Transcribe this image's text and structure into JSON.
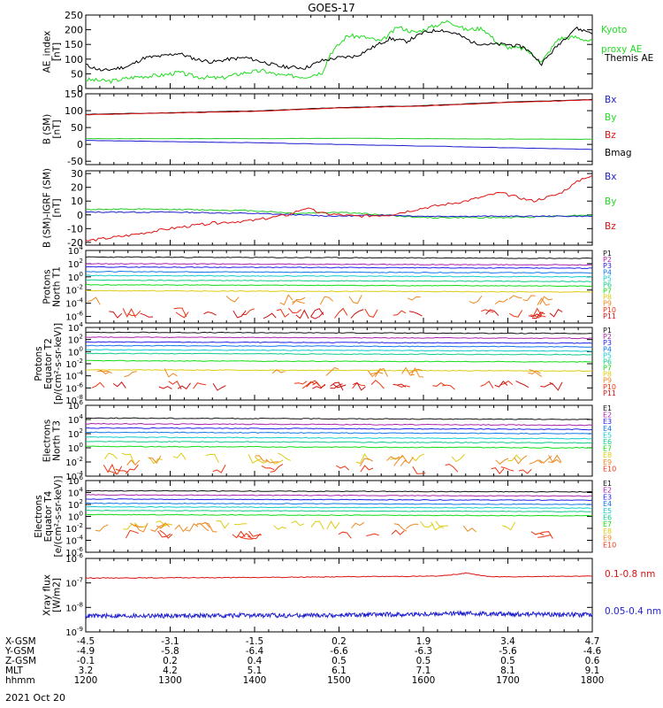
{
  "title": "GOES-17",
  "date_label": "2021 Oct 20",
  "colors": {
    "black": "#000000",
    "green": "#22cc22",
    "blue": "#1f1fd0",
    "red": "#dd1111",
    "kyoto": "#22dd22",
    "prot": [
      "#111111",
      "#aa22aa",
      "#2222ee",
      "#1177ee",
      "#11cccc",
      "#11cc88",
      "#11dd11",
      "#ddcc11",
      "#ee8822",
      "#ee3311",
      "#cc1111"
    ]
  },
  "panels": [
    {
      "id": "ae",
      "ylabel_lines": [
        "AE_index",
        "[nT]"
      ],
      "scale": "linear",
      "ylim": [
        0,
        250
      ],
      "ticks": [
        "0",
        "50",
        "100",
        "150",
        "200",
        "250"
      ],
      "legend": [
        {
          "text": "Kyoto",
          "color": "green"
        },
        {
          "text": "proxy AE",
          "color": "green"
        },
        {
          "text": "Themis AE",
          "color": "black"
        }
      ]
    },
    {
      "id": "bsm",
      "ylabel_lines": [
        "B (SM)",
        "[nT]"
      ],
      "scale": "linear",
      "ylim": [
        -60,
        150
      ],
      "ticks": [
        "-50",
        "0",
        "50",
        "100",
        "150"
      ],
      "legend": [
        {
          "text": "Bx",
          "color": "blue"
        },
        {
          "text": "By",
          "color": "green"
        },
        {
          "text": "Bz",
          "color": "red"
        },
        {
          "text": "Bmag",
          "color": "black"
        }
      ]
    },
    {
      "id": "bigrf",
      "ylabel_lines": [
        "B (SM)-IGRF (SM)",
        "[nT]"
      ],
      "scale": "linear",
      "ylim": [
        -22,
        32
      ],
      "ticks": [
        "-20",
        "-10",
        "0",
        "10",
        "20",
        "30"
      ],
      "legend": [
        {
          "text": "Bx",
          "color": "blue"
        },
        {
          "text": "By",
          "color": "green"
        },
        {
          "text": "Bz",
          "color": "red"
        }
      ]
    },
    {
      "id": "pnt1",
      "ylabel_lines": [
        "Protons",
        "North T1"
      ],
      "scale": "log",
      "ylim": [
        -7,
        4
      ],
      "tick_exps": [
        "4",
        "2",
        "0",
        "-2",
        "-4",
        "-6"
      ],
      "legend": [
        "P1",
        "P2",
        "P3",
        "P4",
        "P5",
        "P6",
        "P7",
        "P8",
        "P9",
        "P10",
        "P11"
      ]
    },
    {
      "id": "pet2",
      "ylabel_lines": [
        "Protons",
        "Equator T2",
        "[p/(cm²-s-sr-keV)]"
      ],
      "scale": "log",
      "ylim": [
        -8,
        4
      ],
      "tick_exps": [
        "4",
        "2",
        "0",
        "-2",
        "-4",
        "-6",
        "-8"
      ],
      "legend": [
        "P1",
        "P2",
        "P3",
        "P4",
        "P5",
        "P6",
        "P7",
        "P8",
        "P9",
        "P10",
        "P11"
      ]
    },
    {
      "id": "ent3",
      "ylabel_lines": [
        "Electrons",
        "North T3"
      ],
      "scale": "log",
      "ylim": [
        -4,
        6
      ],
      "tick_exps": [
        "6",
        "4",
        "2",
        "0",
        "-2",
        "-4"
      ],
      "legend": [
        "E1",
        "E2",
        "E3",
        "E4",
        "E5",
        "E6",
        "E7",
        "E8",
        "E9",
        "E10"
      ]
    },
    {
      "id": "eet4",
      "ylabel_lines": [
        "Electrons",
        "Equator T4",
        "[e/(cm²-s-sr-keV)]"
      ],
      "scale": "log",
      "ylim": [
        -6,
        6
      ],
      "tick_exps": [
        "6",
        "4",
        "2",
        "0",
        "-2",
        "-4",
        "-6"
      ],
      "legend": [
        "E1",
        "E2",
        "E3",
        "E4",
        "E5",
        "E6",
        "E7",
        "E8",
        "E9",
        "E10"
      ]
    },
    {
      "id": "xray",
      "ylabel_lines": [
        "Xray flux",
        "[W/m2]"
      ],
      "scale": "log",
      "ylim": [
        -9,
        -6
      ],
      "tick_exps": [
        "-6",
        "-7",
        "-8",
        "-9"
      ],
      "legend": [
        {
          "text": "0.1-0.8 nm",
          "color": "red"
        },
        {
          "text": "0.05-0.4 nm",
          "color": "blue"
        }
      ]
    }
  ],
  "x_axis": {
    "row_labels": [
      "X-GSM",
      "Y-GSM",
      "Z-GSM",
      "MLT",
      "hhmm"
    ],
    "columns": [
      [
        "-4.5",
        "-4.9",
        "-0.1",
        "3.2",
        "1200"
      ],
      [
        "-3.1",
        "-5.8",
        "0.2",
        "4.2",
        "1300"
      ],
      [
        "-1.5",
        "-6.4",
        "0.4",
        "5.1",
        "1400"
      ],
      [
        "0.2",
        "-6.6",
        "0.5",
        "6.1",
        "1500"
      ],
      [
        "1.9",
        "-6.3",
        "0.5",
        "7.1",
        "1600"
      ],
      [
        "3.4",
        "-5.6",
        "0.5",
        "8.1",
        "1700"
      ],
      [
        "4.7",
        "-4.6",
        "0.6",
        "9.1",
        "1800"
      ]
    ]
  },
  "chart_data": {
    "type": "line",
    "x_hours": [
      12,
      18
    ],
    "ae": {
      "kyoto": [
        [
          12.0,
          30
        ],
        [
          12.3,
          25
        ],
        [
          12.6,
          40
        ],
        [
          12.9,
          45
        ],
        [
          13.1,
          55
        ],
        [
          13.3,
          40
        ],
        [
          13.6,
          35
        ],
        [
          13.9,
          55
        ],
        [
          14.1,
          60
        ],
        [
          14.3,
          45
        ],
        [
          14.6,
          40
        ],
        [
          14.8,
          55
        ],
        [
          14.9,
          120
        ],
        [
          15.1,
          180
        ],
        [
          15.3,
          175
        ],
        [
          15.5,
          160
        ],
        [
          15.7,
          210
        ],
        [
          15.9,
          190
        ],
        [
          16.1,
          210
        ],
        [
          16.3,
          230
        ],
        [
          16.5,
          200
        ],
        [
          16.7,
          205
        ],
        [
          16.9,
          150
        ],
        [
          17.0,
          140
        ],
        [
          17.2,
          135
        ],
        [
          17.4,
          90
        ],
        [
          17.6,
          170
        ],
        [
          17.8,
          175
        ],
        [
          18.0,
          160
        ]
      ],
      "themis": [
        [
          12.0,
          80
        ],
        [
          12.2,
          60
        ],
        [
          12.5,
          75
        ],
        [
          12.7,
          105
        ],
        [
          12.9,
          110
        ],
        [
          13.1,
          120
        ],
        [
          13.3,
          100
        ],
        [
          13.5,
          90
        ],
        [
          13.7,
          100
        ],
        [
          13.9,
          105
        ],
        [
          14.1,
          90
        ],
        [
          14.3,
          75
        ],
        [
          14.6,
          70
        ],
        [
          14.8,
          95
        ],
        [
          15.0,
          105
        ],
        [
          15.2,
          110
        ],
        [
          15.4,
          140
        ],
        [
          15.6,
          170
        ],
        [
          15.8,
          160
        ],
        [
          16.0,
          190
        ],
        [
          16.2,
          200
        ],
        [
          16.4,
          185
        ],
        [
          16.6,
          155
        ],
        [
          16.8,
          150
        ],
        [
          17.0,
          150
        ],
        [
          17.2,
          140
        ],
        [
          17.4,
          85
        ],
        [
          17.6,
          150
        ],
        [
          17.8,
          205
        ],
        [
          18.0,
          190
        ]
      ]
    },
    "bsm": {
      "bx": [
        [
          12,
          12
        ],
        [
          13,
          8
        ],
        [
          14,
          5
        ],
        [
          15,
          0
        ],
        [
          16,
          -5
        ],
        [
          17,
          -10
        ],
        [
          18,
          -15
        ]
      ],
      "by": [
        [
          12,
          17
        ],
        [
          13,
          17
        ],
        [
          14,
          17
        ],
        [
          15,
          18
        ],
        [
          16,
          17
        ],
        [
          17,
          16
        ],
        [
          18,
          15
        ]
      ],
      "bz": [
        [
          12,
          88
        ],
        [
          13,
          93
        ],
        [
          14,
          98
        ],
        [
          15,
          108
        ],
        [
          16,
          114
        ],
        [
          17,
          124
        ],
        [
          18,
          132
        ]
      ],
      "bmag": [
        [
          12,
          89
        ],
        [
          13,
          94
        ],
        [
          14,
          99
        ],
        [
          15,
          109
        ],
        [
          16,
          115
        ],
        [
          17,
          125
        ],
        [
          18,
          133
        ]
      ]
    },
    "bigrf": {
      "bx": [
        [
          12,
          2
        ],
        [
          13,
          2
        ],
        [
          14,
          1
        ],
        [
          14.5,
          0
        ],
        [
          15,
          -1
        ],
        [
          15.5,
          0
        ],
        [
          16,
          -1
        ],
        [
          17,
          -1
        ],
        [
          18,
          -1
        ]
      ],
      "by": [
        [
          12,
          4
        ],
        [
          13,
          4
        ],
        [
          14,
          3
        ],
        [
          14.5,
          1
        ],
        [
          15,
          2
        ],
        [
          15.5,
          0
        ],
        [
          16,
          -2
        ],
        [
          17,
          -2
        ],
        [
          18,
          0
        ]
      ],
      "bz": [
        [
          12,
          -19
        ],
        [
          12.5,
          -15
        ],
        [
          13,
          -10
        ],
        [
          13.5,
          -6
        ],
        [
          14,
          -4
        ],
        [
          14.4,
          0
        ],
        [
          14.6,
          5
        ],
        [
          14.8,
          1
        ],
        [
          15.2,
          -1
        ],
        [
          15.6,
          0
        ],
        [
          16,
          5
        ],
        [
          16.5,
          10
        ],
        [
          16.9,
          16
        ],
        [
          17.3,
          10
        ],
        [
          17.6,
          15
        ],
        [
          17.9,
          27
        ],
        [
          18,
          28
        ]
      ]
    },
    "protons_north_t1_log10": [
      3.0,
      2.0,
      1.5,
      0.8,
      0.2,
      -0.5,
      -1.2,
      -2.1,
      -3.5,
      -5.5,
      -5.6
    ],
    "protons_equator_t2_log10": [
      3.2,
      2.4,
      1.6,
      1.0,
      0.3,
      -0.3,
      -1.5,
      -3.0,
      -3.4,
      -5.5,
      -5.6
    ],
    "electrons_north_t3_log10": [
      4.2,
      3.4,
      2.8,
      2.2,
      1.5,
      0.9,
      0.2,
      -1.5,
      -1.8,
      -3.0
    ],
    "electrons_equator_t4_log10": [
      4.3,
      3.6,
      2.9,
      2.2,
      1.6,
      1.0,
      0.3,
      -1.5,
      -1.8,
      -3.0
    ],
    "xray_log10": {
      "long_0.1-0.8nm": [
        [
          12,
          -6.8
        ],
        [
          14,
          -6.78
        ],
        [
          15,
          -6.75
        ],
        [
          16.2,
          -6.72
        ],
        [
          16.5,
          -6.6
        ],
        [
          16.8,
          -6.75
        ],
        [
          18,
          -6.72
        ]
      ],
      "short_0.05-0.4nm": [
        [
          12,
          -8.35
        ],
        [
          14,
          -8.33
        ],
        [
          15,
          -8.32
        ],
        [
          16.5,
          -8.25
        ],
        [
          18,
          -8.3
        ]
      ]
    }
  }
}
